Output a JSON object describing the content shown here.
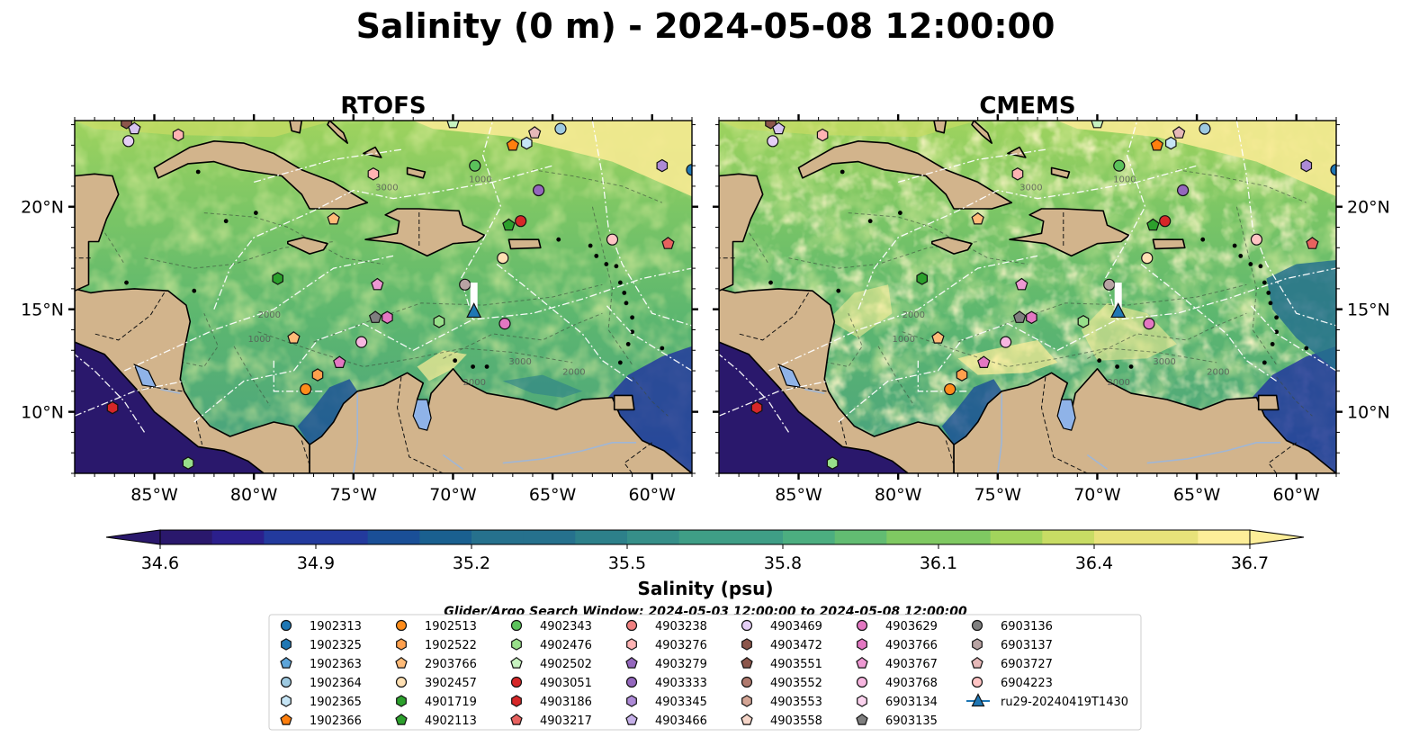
{
  "title": "Salinity (0 m) - 2024-05-08 12:00:00",
  "panels": [
    {
      "id": "rtofs",
      "title": "RTOFS",
      "lat_ticks_side": "left"
    },
    {
      "id": "cmems",
      "title": "CMEMS",
      "lat_ticks_side": "right"
    }
  ],
  "map_extent": {
    "lon": [
      -89,
      -58
    ],
    "lat": [
      7,
      24.2
    ]
  },
  "lon_ticks": [
    {
      "value": -85,
      "label": "85°W"
    },
    {
      "value": -80,
      "label": "80°W"
    },
    {
      "value": -75,
      "label": "75°W"
    },
    {
      "value": -70,
      "label": "70°W"
    },
    {
      "value": -65,
      "label": "65°W"
    },
    {
      "value": -60,
      "label": "60°W"
    }
  ],
  "lat_ticks": [
    {
      "value": 10,
      "label": "10°N"
    },
    {
      "value": 15,
      "label": "15°N"
    },
    {
      "value": 20,
      "label": "20°N"
    }
  ],
  "contour_labels": [
    "1000",
    "2000",
    "3000"
  ],
  "colorbar": {
    "label": "Salinity (psu)",
    "min": 34.6,
    "max": 36.7,
    "step": 0.1,
    "extend": "both",
    "ticks": [
      "34.6",
      "34.9",
      "35.2",
      "35.5",
      "35.8",
      "36.1",
      "36.4",
      "36.7"
    ],
    "colormap": "haline"
  },
  "colors": {
    "land": "#d2b48c",
    "lake": "#8fb3e8",
    "river": "#9fb6d6",
    "marker_edge": "#111111"
  },
  "search_window": "Glider/Argo Search Window: 2024-05-03 12:00:00 to 2024-05-08 12:00:00",
  "legend": [
    {
      "label": "1902313",
      "marker": "circle",
      "color": "#1f77b4"
    },
    {
      "label": "1902325",
      "marker": "hexagon",
      "color": "#1f77b4"
    },
    {
      "label": "1902363",
      "marker": "pentagon",
      "color": "#5da5da"
    },
    {
      "label": "1902364",
      "marker": "circle",
      "color": "#9ecae1"
    },
    {
      "label": "1902365",
      "marker": "hexagon",
      "color": "#c6e5f5"
    },
    {
      "label": "1902366",
      "marker": "pentagon",
      "color": "#ff7f0e"
    },
    {
      "label": "1902513",
      "marker": "circle",
      "color": "#ff8c1a"
    },
    {
      "label": "1902522",
      "marker": "hexagon",
      "color": "#ffa04d"
    },
    {
      "label": "2903766",
      "marker": "pentagon",
      "color": "#ffbb78"
    },
    {
      "label": "3902457",
      "marker": "circle",
      "color": "#ffe0b3"
    },
    {
      "label": "4901719",
      "marker": "hexagon",
      "color": "#2ca02c"
    },
    {
      "label": "4902113",
      "marker": "pentagon",
      "color": "#2ca02c"
    },
    {
      "label": "4902343",
      "marker": "circle",
      "color": "#5bc25b"
    },
    {
      "label": "4902476",
      "marker": "hexagon",
      "color": "#98df8a"
    },
    {
      "label": "4902502",
      "marker": "pentagon",
      "color": "#c7f2c0"
    },
    {
      "label": "4903051",
      "marker": "circle",
      "color": "#d62728"
    },
    {
      "label": "4903186",
      "marker": "hexagon",
      "color": "#d62728"
    },
    {
      "label": "4903217",
      "marker": "pentagon",
      "color": "#e8625f"
    },
    {
      "label": "4903238",
      "marker": "circle",
      "color": "#f08080"
    },
    {
      "label": "4903276",
      "marker": "hexagon",
      "color": "#ffb3b3"
    },
    {
      "label": "4903279",
      "marker": "pentagon",
      "color": "#9467bd"
    },
    {
      "label": "4903333",
      "marker": "circle",
      "color": "#9467bd"
    },
    {
      "label": "4903345",
      "marker": "hexagon",
      "color": "#ad8ad6"
    },
    {
      "label": "4903466",
      "marker": "pentagon",
      "color": "#c5b0e8"
    },
    {
      "label": "4903469",
      "marker": "circle",
      "color": "#e5cff5"
    },
    {
      "label": "4903472",
      "marker": "hexagon",
      "color": "#8c564b"
    },
    {
      "label": "4903551",
      "marker": "pentagon",
      "color": "#8c564b"
    },
    {
      "label": "4903552",
      "marker": "circle",
      "color": "#b07a6e"
    },
    {
      "label": "4903553",
      "marker": "hexagon",
      "color": "#d4a595"
    },
    {
      "label": "4903558",
      "marker": "pentagon",
      "color": "#f5d5c8"
    },
    {
      "label": "4903629",
      "marker": "circle",
      "color": "#e377c2"
    },
    {
      "label": "4903766",
      "marker": "hexagon",
      "color": "#e377c2"
    },
    {
      "label": "4903767",
      "marker": "pentagon",
      "color": "#ee99d3"
    },
    {
      "label": "4903768",
      "marker": "circle",
      "color": "#f7b6e0"
    },
    {
      "label": "6903134",
      "marker": "hexagon",
      "color": "#fbd3ee"
    },
    {
      "label": "6903135",
      "marker": "pentagon",
      "color": "#7f7f7f"
    },
    {
      "label": "6903136",
      "marker": "circle",
      "color": "#7f7f7f"
    },
    {
      "label": "6903137",
      "marker": "hexagon",
      "color": "#b8a3a3"
    },
    {
      "label": "6903727",
      "marker": "pentagon",
      "color": "#e6b8b8"
    },
    {
      "label": "6904223",
      "marker": "circle",
      "color": "#ffc4c4"
    },
    {
      "label": "ru29-20240419T1430",
      "marker": "triangle-line",
      "color": "#1f77b4"
    }
  ],
  "floats": [
    {
      "lon": -86.4,
      "lat": 24.1,
      "color": "#8c564b",
      "marker": "hexagon"
    },
    {
      "lon": -86.0,
      "lat": 23.8,
      "color": "#d6c3f0",
      "marker": "pentagon"
    },
    {
      "lon": -86.3,
      "lat": 23.2,
      "color": "#e5cff5",
      "marker": "circle"
    },
    {
      "lon": -83.8,
      "lat": 23.5,
      "color": "#ffb3b3",
      "marker": "hexagon"
    },
    {
      "lon": -74.0,
      "lat": 21.6,
      "color": "#ffb3b3",
      "marker": "hexagon"
    },
    {
      "lon": -68.9,
      "lat": 22.0,
      "color": "#5bc25b",
      "marker": "circle"
    },
    {
      "lon": -70.0,
      "lat": 24.1,
      "color": "#c7f2c0",
      "marker": "pentagon"
    },
    {
      "lon": -67.0,
      "lat": 23.0,
      "color": "#ff7f0e",
      "marker": "pentagon"
    },
    {
      "lon": -66.3,
      "lat": 23.1,
      "color": "#c6e5f5",
      "marker": "hexagon"
    },
    {
      "lon": -65.9,
      "lat": 23.6,
      "color": "#e6b8b8",
      "marker": "pentagon"
    },
    {
      "lon": -64.6,
      "lat": 23.8,
      "color": "#9ecae1",
      "marker": "circle"
    },
    {
      "lon": -59.5,
      "lat": 22.0,
      "color": "#ad8ad6",
      "marker": "hexagon"
    },
    {
      "lon": -58.0,
      "lat": 21.8,
      "color": "#1f77b4",
      "marker": "circle"
    },
    {
      "lon": -65.7,
      "lat": 20.8,
      "color": "#9467bd",
      "marker": "circle"
    },
    {
      "lon": -76.0,
      "lat": 19.4,
      "color": "#ffbb78",
      "marker": "pentagon"
    },
    {
      "lon": -66.6,
      "lat": 19.3,
      "color": "#d62728",
      "marker": "circle"
    },
    {
      "lon": -67.2,
      "lat": 19.1,
      "color": "#2ca02c",
      "marker": "pentagon"
    },
    {
      "lon": -62.0,
      "lat": 18.4,
      "color": "#ffc4c4",
      "marker": "circle"
    },
    {
      "lon": -59.2,
      "lat": 18.2,
      "color": "#e8625f",
      "marker": "pentagon"
    },
    {
      "lon": -67.5,
      "lat": 17.5,
      "color": "#ffe0b3",
      "marker": "circle"
    },
    {
      "lon": -78.8,
      "lat": 16.5,
      "color": "#2ca02c",
      "marker": "hexagon"
    },
    {
      "lon": -73.8,
      "lat": 16.2,
      "color": "#ee99d3",
      "marker": "pentagon"
    },
    {
      "lon": -69.4,
      "lat": 16.2,
      "color": "#b8a3a3",
      "marker": "circle"
    },
    {
      "lon": -73.9,
      "lat": 14.6,
      "color": "#7f7f7f",
      "marker": "pentagon"
    },
    {
      "lon": -73.3,
      "lat": 14.6,
      "color": "#e377c2",
      "marker": "hexagon"
    },
    {
      "lon": -70.7,
      "lat": 14.4,
      "color": "#98df8a",
      "marker": "hexagon"
    },
    {
      "lon": -67.4,
      "lat": 14.3,
      "color": "#e377c2",
      "marker": "circle"
    },
    {
      "lon": -78.0,
      "lat": 13.6,
      "color": "#ffbb78",
      "marker": "pentagon"
    },
    {
      "lon": -74.6,
      "lat": 13.4,
      "color": "#f7b6e0",
      "marker": "circle"
    },
    {
      "lon": -75.7,
      "lat": 12.4,
      "color": "#e377c2",
      "marker": "pentagon"
    },
    {
      "lon": -76.8,
      "lat": 11.8,
      "color": "#ffa04d",
      "marker": "hexagon"
    },
    {
      "lon": -77.4,
      "lat": 11.1,
      "color": "#ff8c1a",
      "marker": "circle"
    },
    {
      "lon": -87.1,
      "lat": 10.2,
      "color": "#d62728",
      "marker": "hexagon"
    },
    {
      "lon": -83.3,
      "lat": 7.5,
      "color": "#98df8a",
      "marker": "hexagon"
    }
  ],
  "glider": {
    "lon": -68.95,
    "lat": 14.9,
    "track_lat_end": 16.3,
    "color": "#1f77b4"
  }
}
